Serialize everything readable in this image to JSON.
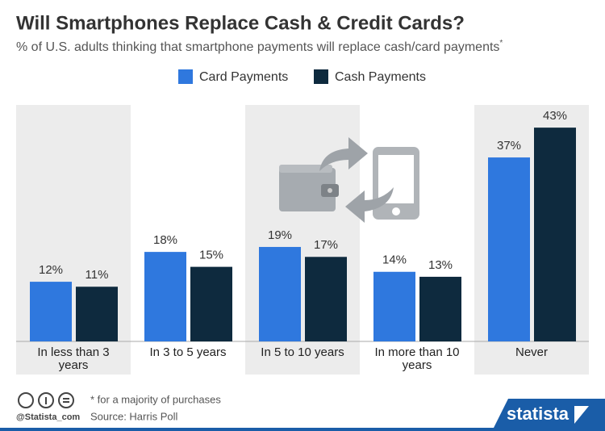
{
  "chart_data": {
    "type": "bar",
    "title": "Will Smartphones Replace Cash & Credit Cards?",
    "subtitle": "% of U.S. adults thinking that smartphone payments will replace cash/card payments",
    "subtitle_note": "*",
    "categories": [
      "In less than 3 years",
      "In 3 to 5 years",
      "In 5 to 10 years",
      "In more than 10 years",
      "Never"
    ],
    "series": [
      {
        "name": "Card Payments",
        "color": "#2f78de",
        "values": [
          12,
          18,
          19,
          14,
          37
        ],
        "value_labels": [
          "12%",
          "18%",
          "19%",
          "14%",
          "37%"
        ]
      },
      {
        "name": "Cash Payments",
        "color": "#0e2a3e",
        "values": [
          11,
          15,
          17,
          13,
          43
        ],
        "value_labels": [
          "11%",
          "15%",
          "17%",
          "13%",
          "43%"
        ]
      }
    ],
    "footnote": "* for a majority of purchases",
    "source": "Source: Harris Poll",
    "handle": "@Statista_com",
    "brand": "statista"
  }
}
